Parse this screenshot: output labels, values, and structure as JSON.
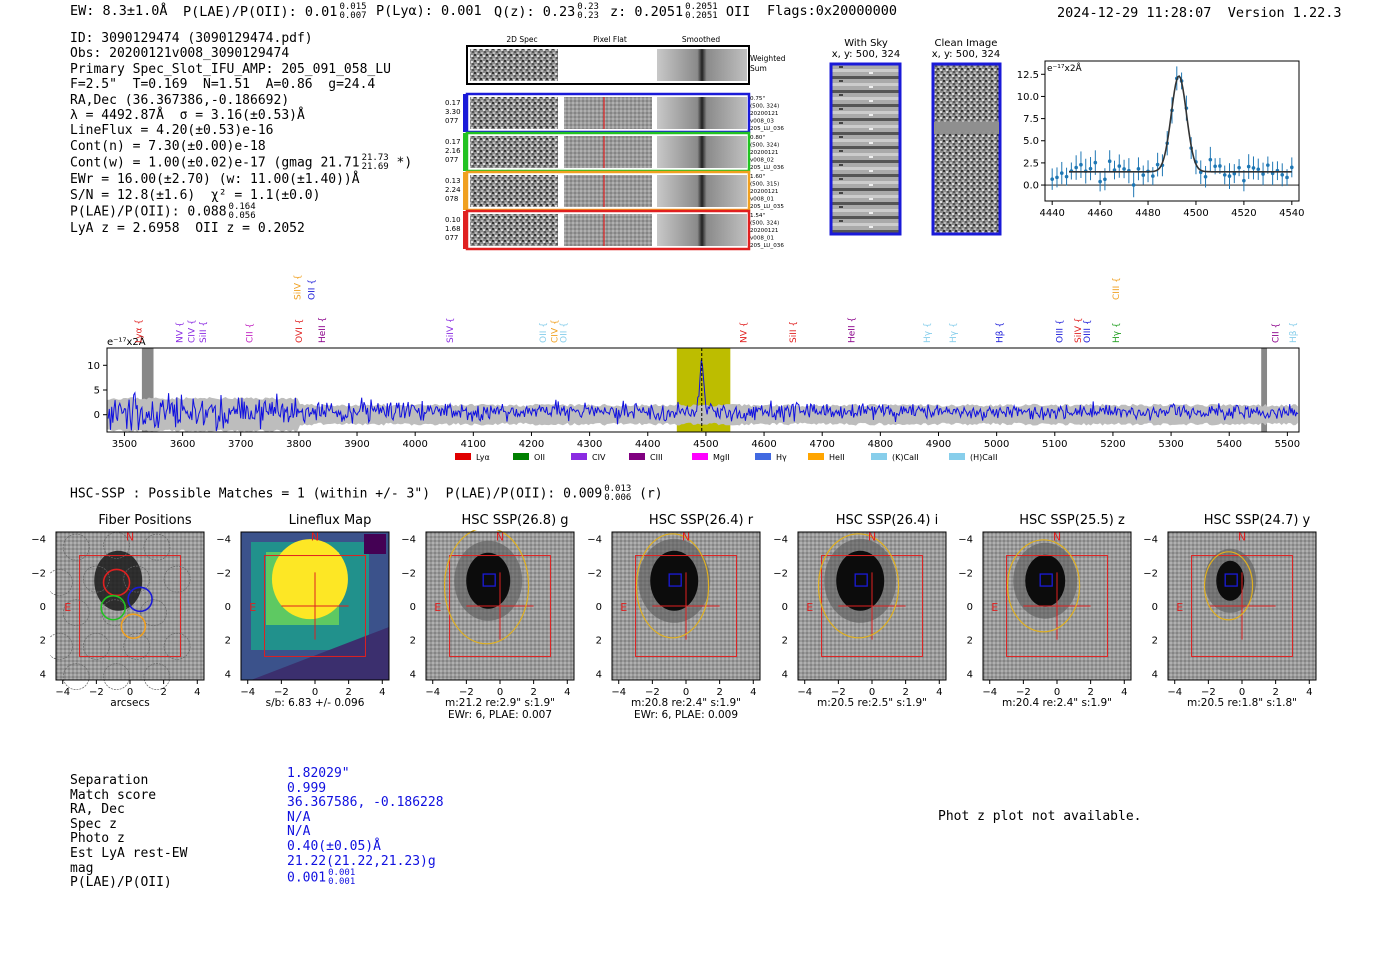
{
  "header": {
    "ew": "EW: 8.3±1.0Å",
    "plae_label": "P(LAE)/P(OII): 0.01",
    "plae_hi": "0.015",
    "plae_lo": "0.007",
    "plya": "P(Lyα): 0.001",
    "qz_label": "Q(z): 0.23",
    "qz_hi": "0.23",
    "qz_lo": "0.23",
    "z_label": "z: 0.2051",
    "z_hi": "0.2051",
    "z_lo": "0.2051",
    "z_line": "OII",
    "flags": "Flags:0x20000000",
    "datetime": "2024-12-29 11:28:07",
    "version": "Version 1.22.3"
  },
  "info": {
    "l1": "ID: 3090129474 (3090129474.pdf)",
    "l2": "Obs: 20200121v008_3090129474",
    "l3": "Primary Spec_Slot_IFU_AMP: 205_091_058_LU",
    "l4": "F=2.5\"  T=0.169  N=1.51  A=0.86  g=24.4",
    "l5": "RA,Dec (36.367386,-0.186692)",
    "l6": "λ = 4492.87Å  σ = 3.16(±0.53)Å",
    "l7": "LineFlux = 4.20(±0.53)e-16",
    "l8": "Cont(n) = 7.30(±0.00)e-18",
    "l9": "Cont(w) = 1.00(±0.02)e-17 (gmag 21.71",
    "l9_hi": "21.73",
    "l9_lo": "21.69",
    "l9_end": "*)",
    "l10": "EWr = 16.00(±2.70) (w: 11.00(±1.40))Å",
    "l11": "S/N = 12.8(±1.6)  χ² = 1.1(±0.0)",
    "l12": "P(LAE)/P(OII): 0.088",
    "l12_hi": "0.164",
    "l12_lo": "0.056",
    "l13": "LyA z = 2.6958  OII z = 0.2052"
  },
  "cutouts": {
    "col1": "2D Spec",
    "col2": "Pixel Flat",
    "col3": "Smoothed",
    "weighted_a": "Weighted",
    "weighted_b": "Sum",
    "rows": [
      {
        "l1": "0.17",
        "l2": "3.30",
        "l3": "077",
        "r1": "0.75\"",
        "r2": "(500, 324)",
        "r3": "20200121",
        "r4": "v008_03",
        "r5": "205_LU_036",
        "color": "#1a1ad8"
      },
      {
        "l1": "0.17",
        "l2": "2.16",
        "l3": "077",
        "r1": "0.80\"",
        "r2": "(500, 324)",
        "r3": "20200121",
        "r4": "v008_02",
        "r5": "205_LU_036",
        "color": "#22c222"
      },
      {
        "l1": "0.13",
        "l2": "2.24",
        "l3": "078",
        "r1": "1.60\"",
        "r2": "(500, 315)",
        "r3": "20200121",
        "r4": "v008_01",
        "r5": "205_LU_035",
        "color": "#f0a020"
      },
      {
        "l1": "0.10",
        "l2": "1.68",
        "l3": "077",
        "r1": "1.54\"",
        "r2": "(500, 324)",
        "r3": "20200121",
        "r4": "v008_01",
        "r5": "205_LU_036",
        "color": "#e02020"
      }
    ],
    "with_sky": "With Sky",
    "with_sky_xy": "x, y: 500, 324",
    "clean": "Clean Image",
    "clean_xy": "x, y: 500, 324"
  },
  "zoom_chart": {
    "type": "scatter",
    "unit": "e⁻¹⁷x2Å",
    "xticks": [
      "4440",
      "4460",
      "4480",
      "4500",
      "4520",
      "4540"
    ],
    "yticks": [
      "0.0",
      "2.5",
      "5.0",
      "7.5",
      "10.0",
      "12.5"
    ],
    "xlim": [
      4437,
      4543
    ],
    "ylim": [
      -1.8,
      14.0
    ]
  },
  "chart_data": {
    "type": "line",
    "title": "",
    "unit": "e⁻¹⁷x2Å",
    "xlim": [
      3470,
      5520
    ],
    "ylim": [
      -3.5,
      13.5
    ],
    "xticks": [
      "3500",
      "3600",
      "3700",
      "3800",
      "3900",
      "4000",
      "4100",
      "4200",
      "4300",
      "4400",
      "4500",
      "4600",
      "4700",
      "4800",
      "4900",
      "5000",
      "5100",
      "5200",
      "5300",
      "5400",
      "5500"
    ],
    "yticks": [
      "0",
      "5",
      "10"
    ],
    "highlight_range": [
      4450,
      4542
    ],
    "line_center": 4492.87,
    "masked": [
      [
        3530,
        3550
      ],
      [
        5455,
        5465
      ]
    ],
    "series_color": "#1010e0",
    "error_color": "#bdbdbd",
    "line_ids": [
      {
        "label": "Lyα",
        "x": 3524,
        "color": "#e02020",
        "row": "low"
      },
      {
        "label": "NV",
        "x": 3595,
        "color": "#8a2be2",
        "row": "low"
      },
      {
        "label": "SiII",
        "x": 3635,
        "color": "#8a2be2",
        "row": "low"
      },
      {
        "label": "CIV",
        "x": 3615,
        "color": "#8a2be2",
        "row": "low"
      },
      {
        "label": "CII",
        "x": 3715,
        "color": "#c020c0",
        "row": "low"
      },
      {
        "label": "OVI",
        "x": 3800,
        "color": "#e02020",
        "row": "low"
      },
      {
        "label": "SiIV",
        "x": 3798,
        "color": "#f0a020",
        "row": "high"
      },
      {
        "label": "OII",
        "x": 3822,
        "color": "#1a1ad8",
        "row": "high"
      },
      {
        "label": "HeII",
        "x": 3840,
        "color": "#8b008b",
        "row": "low"
      },
      {
        "label": "SiIV",
        "x": 4060,
        "color": "#8a2be2",
        "row": "low"
      },
      {
        "label": "OII",
        "x": 4220,
        "color": "#87ceeb",
        "row": "low"
      },
      {
        "label": "CIV",
        "x": 4240,
        "color": "#f0a020",
        "row": "low"
      },
      {
        "label": "OII",
        "x": 4255,
        "color": "#87ceeb",
        "row": "low"
      },
      {
        "label": "NV",
        "x": 4565,
        "color": "#e02020",
        "row": "low"
      },
      {
        "label": "SiII",
        "x": 4650,
        "color": "#e02020",
        "row": "low"
      },
      {
        "label": "HeII",
        "x": 4750,
        "color": "#8b008b",
        "row": "low"
      },
      {
        "label": "Hγ",
        "x": 4880,
        "color": "#87ceeb",
        "row": "low"
      },
      {
        "label": "Hγ",
        "x": 4925,
        "color": "#87ceeb",
        "row": "low"
      },
      {
        "label": "Hβ",
        "x": 5005,
        "color": "#1a1ad8",
        "row": "low"
      },
      {
        "label": "OIII",
        "x": 5108,
        "color": "#1a1ad8",
        "row": "low"
      },
      {
        "label": "SiIV",
        "x": 5140,
        "color": "#e02020",
        "row": "low"
      },
      {
        "label": "OIII",
        "x": 5155,
        "color": "#1a1ad8",
        "row": "low"
      },
      {
        "label": "Hγ",
        "x": 5205,
        "color": "#22a022",
        "row": "low"
      },
      {
        "label": "CIII",
        "x": 5205,
        "color": "#f0a020",
        "row": "high"
      },
      {
        "label": "CII",
        "x": 5480,
        "color": "#8b008b",
        "row": "low"
      },
      {
        "label": "Hβ",
        "x": 5510,
        "color": "#87ceeb",
        "row": "low"
      }
    ],
    "legend": [
      {
        "label": "Lyα",
        "color": "#e00000"
      },
      {
        "label": "OII",
        "color": "#008000"
      },
      {
        "label": "CIV",
        "color": "#8a2be2"
      },
      {
        "label": "CIII",
        "color": "#800080"
      },
      {
        "label": "MgII",
        "color": "#ff00ff"
      },
      {
        "label": "Hγ",
        "color": "#4169e1"
      },
      {
        "label": "HeII",
        "color": "#ffa500"
      },
      {
        "label": "(K)CaII",
        "color": "#87ceeb"
      },
      {
        "label": "(H)CaII",
        "color": "#87ceeb"
      }
    ]
  },
  "hsc": {
    "header": "HSC-SSP : Possible Matches = 1 (within +/- 3\")  P(LAE)/P(OII): 0.009",
    "header_hi": "0.013",
    "header_lo": "0.006",
    "header_end": "(r)",
    "ticks": [
      "−4",
      "−2",
      "0",
      "2",
      "4"
    ],
    "panels": [
      {
        "title": "Fiber Positions",
        "cap1": "arcsecs",
        "cap2": ""
      },
      {
        "title": "Lineflux Map",
        "cap1": "s/b: 6.83 +/- 0.096",
        "cap2": ""
      },
      {
        "title": "HSC SSP(26.8) g",
        "cap1": "m:21.2  re:2.9\"  s:1.9\"",
        "cap2": "EWr: 6, PLAE: 0.007"
      },
      {
        "title": "HSC SSP(26.4) r",
        "cap1": "m:20.8  re:2.4\"  s:1.9\"",
        "cap2": "EWr: 6, PLAE: 0.009"
      },
      {
        "title": "HSC SSP(26.4) i",
        "cap1": "m:20.5  re:2.5\"  s:1.9\"",
        "cap2": ""
      },
      {
        "title": "HSC SSP(25.5) z",
        "cap1": "m:20.4  re:2.4\"  s:1.9\"",
        "cap2": ""
      },
      {
        "title": "HSC SSP(24.7) y",
        "cap1": "m:20.5  re:1.8\"  s:1.8\"",
        "cap2": ""
      }
    ],
    "north": "N",
    "east": "E"
  },
  "bottom": {
    "labels": [
      "Separation",
      "Match score",
      "RA, Dec",
      "Spec z",
      "Photo z",
      "Est LyA rest-EW",
      "mag",
      "P(LAE)/P(OII)"
    ],
    "values": [
      "1.82029\"",
      "0.999",
      "36.367586, -0.186228",
      "N/A",
      "N/A",
      "0.40(±0.05)Å",
      "21.22(21.22,21.23)g",
      "0.001"
    ],
    "plae_hi": "0.001",
    "plae_lo": "0.001",
    "photz_msg": "Phot z plot not available."
  }
}
